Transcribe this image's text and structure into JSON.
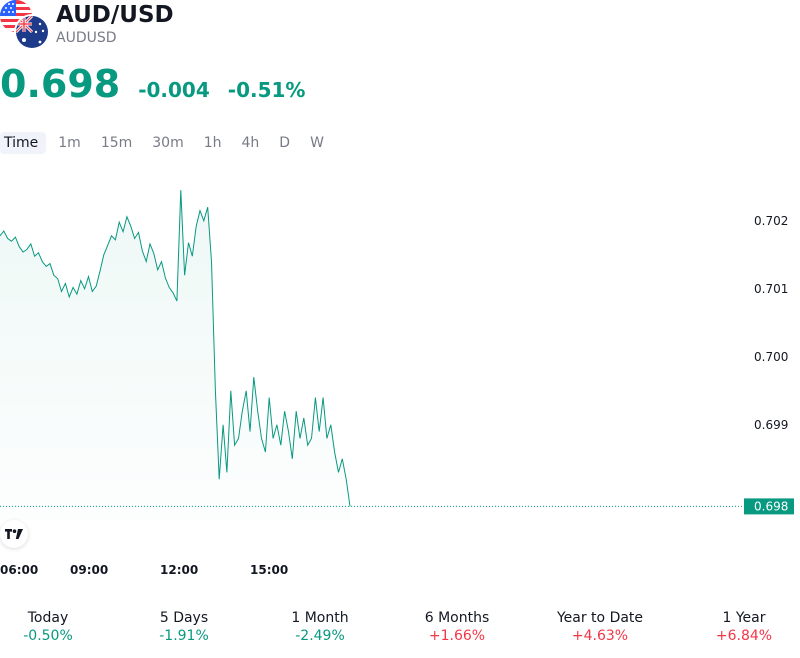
{
  "header": {
    "title": "AUD/USD",
    "subtitle": "AUDUSD",
    "price": "0.698",
    "change": "-0.004",
    "change_pct": "-0.51%",
    "accent_color": "#089981"
  },
  "intervals": [
    "Time",
    "1m",
    "15m",
    "30m",
    "1h",
    "4h",
    "D",
    "W"
  ],
  "active_interval": "Time",
  "chart_data": {
    "type": "area",
    "x_ticks": [
      "06:00",
      "09:00",
      "12:00",
      "15:00"
    ],
    "y_ticks": [
      0.702,
      0.701,
      0.7,
      0.699
    ],
    "ylim": [
      0.6976,
      0.7026
    ],
    "last_value_label": "0.698",
    "line_color": "#089981",
    "series": [
      {
        "values": [
          0.70178,
          0.70185,
          0.70174,
          0.7017,
          0.70176,
          0.70162,
          0.70154,
          0.70158,
          0.70166,
          0.70148,
          0.70153,
          0.7014,
          0.70133,
          0.70137,
          0.7012,
          0.70115,
          0.70096,
          0.70108,
          0.70088,
          0.70102,
          0.70092,
          0.70112,
          0.701,
          0.70118,
          0.70096,
          0.70104,
          0.70126,
          0.7015,
          0.70164,
          0.70178,
          0.70172,
          0.70198,
          0.70184,
          0.70206,
          0.70192,
          0.70174,
          0.70183,
          0.70156,
          0.7014,
          0.70166,
          0.70152,
          0.70128,
          0.7014,
          0.70116,
          0.70102,
          0.70094,
          0.70082,
          0.70245,
          0.7012,
          0.70168,
          0.70148,
          0.70192,
          0.70215,
          0.702,
          0.7022,
          0.7014,
          0.6995,
          0.6982,
          0.699,
          0.6983,
          0.6995,
          0.6987,
          0.6988,
          0.6992,
          0.6995,
          0.6989,
          0.6997,
          0.6992,
          0.6988,
          0.6986,
          0.6994,
          0.6988,
          0.699,
          0.6987,
          0.6992,
          0.6989,
          0.6985,
          0.6992,
          0.6988,
          0.6991,
          0.6987,
          0.6988,
          0.6994,
          0.6989,
          0.6994,
          0.6988,
          0.699,
          0.6986,
          0.6983,
          0.6985,
          0.6982,
          0.6978
        ]
      }
    ]
  },
  "periods": [
    {
      "label": "Today",
      "value": "-0.50%",
      "dir": "neg"
    },
    {
      "label": "5 Days",
      "value": "-1.91%",
      "dir": "neg"
    },
    {
      "label": "1 Month",
      "value": "-2.49%",
      "dir": "neg"
    },
    {
      "label": "6 Months",
      "value": "+1.66%",
      "dir": "pos"
    },
    {
      "label": "Year to Date",
      "value": "+4.63%",
      "dir": "pos"
    },
    {
      "label": "1 Year",
      "value": "+6.84%",
      "dir": "pos"
    }
  ]
}
